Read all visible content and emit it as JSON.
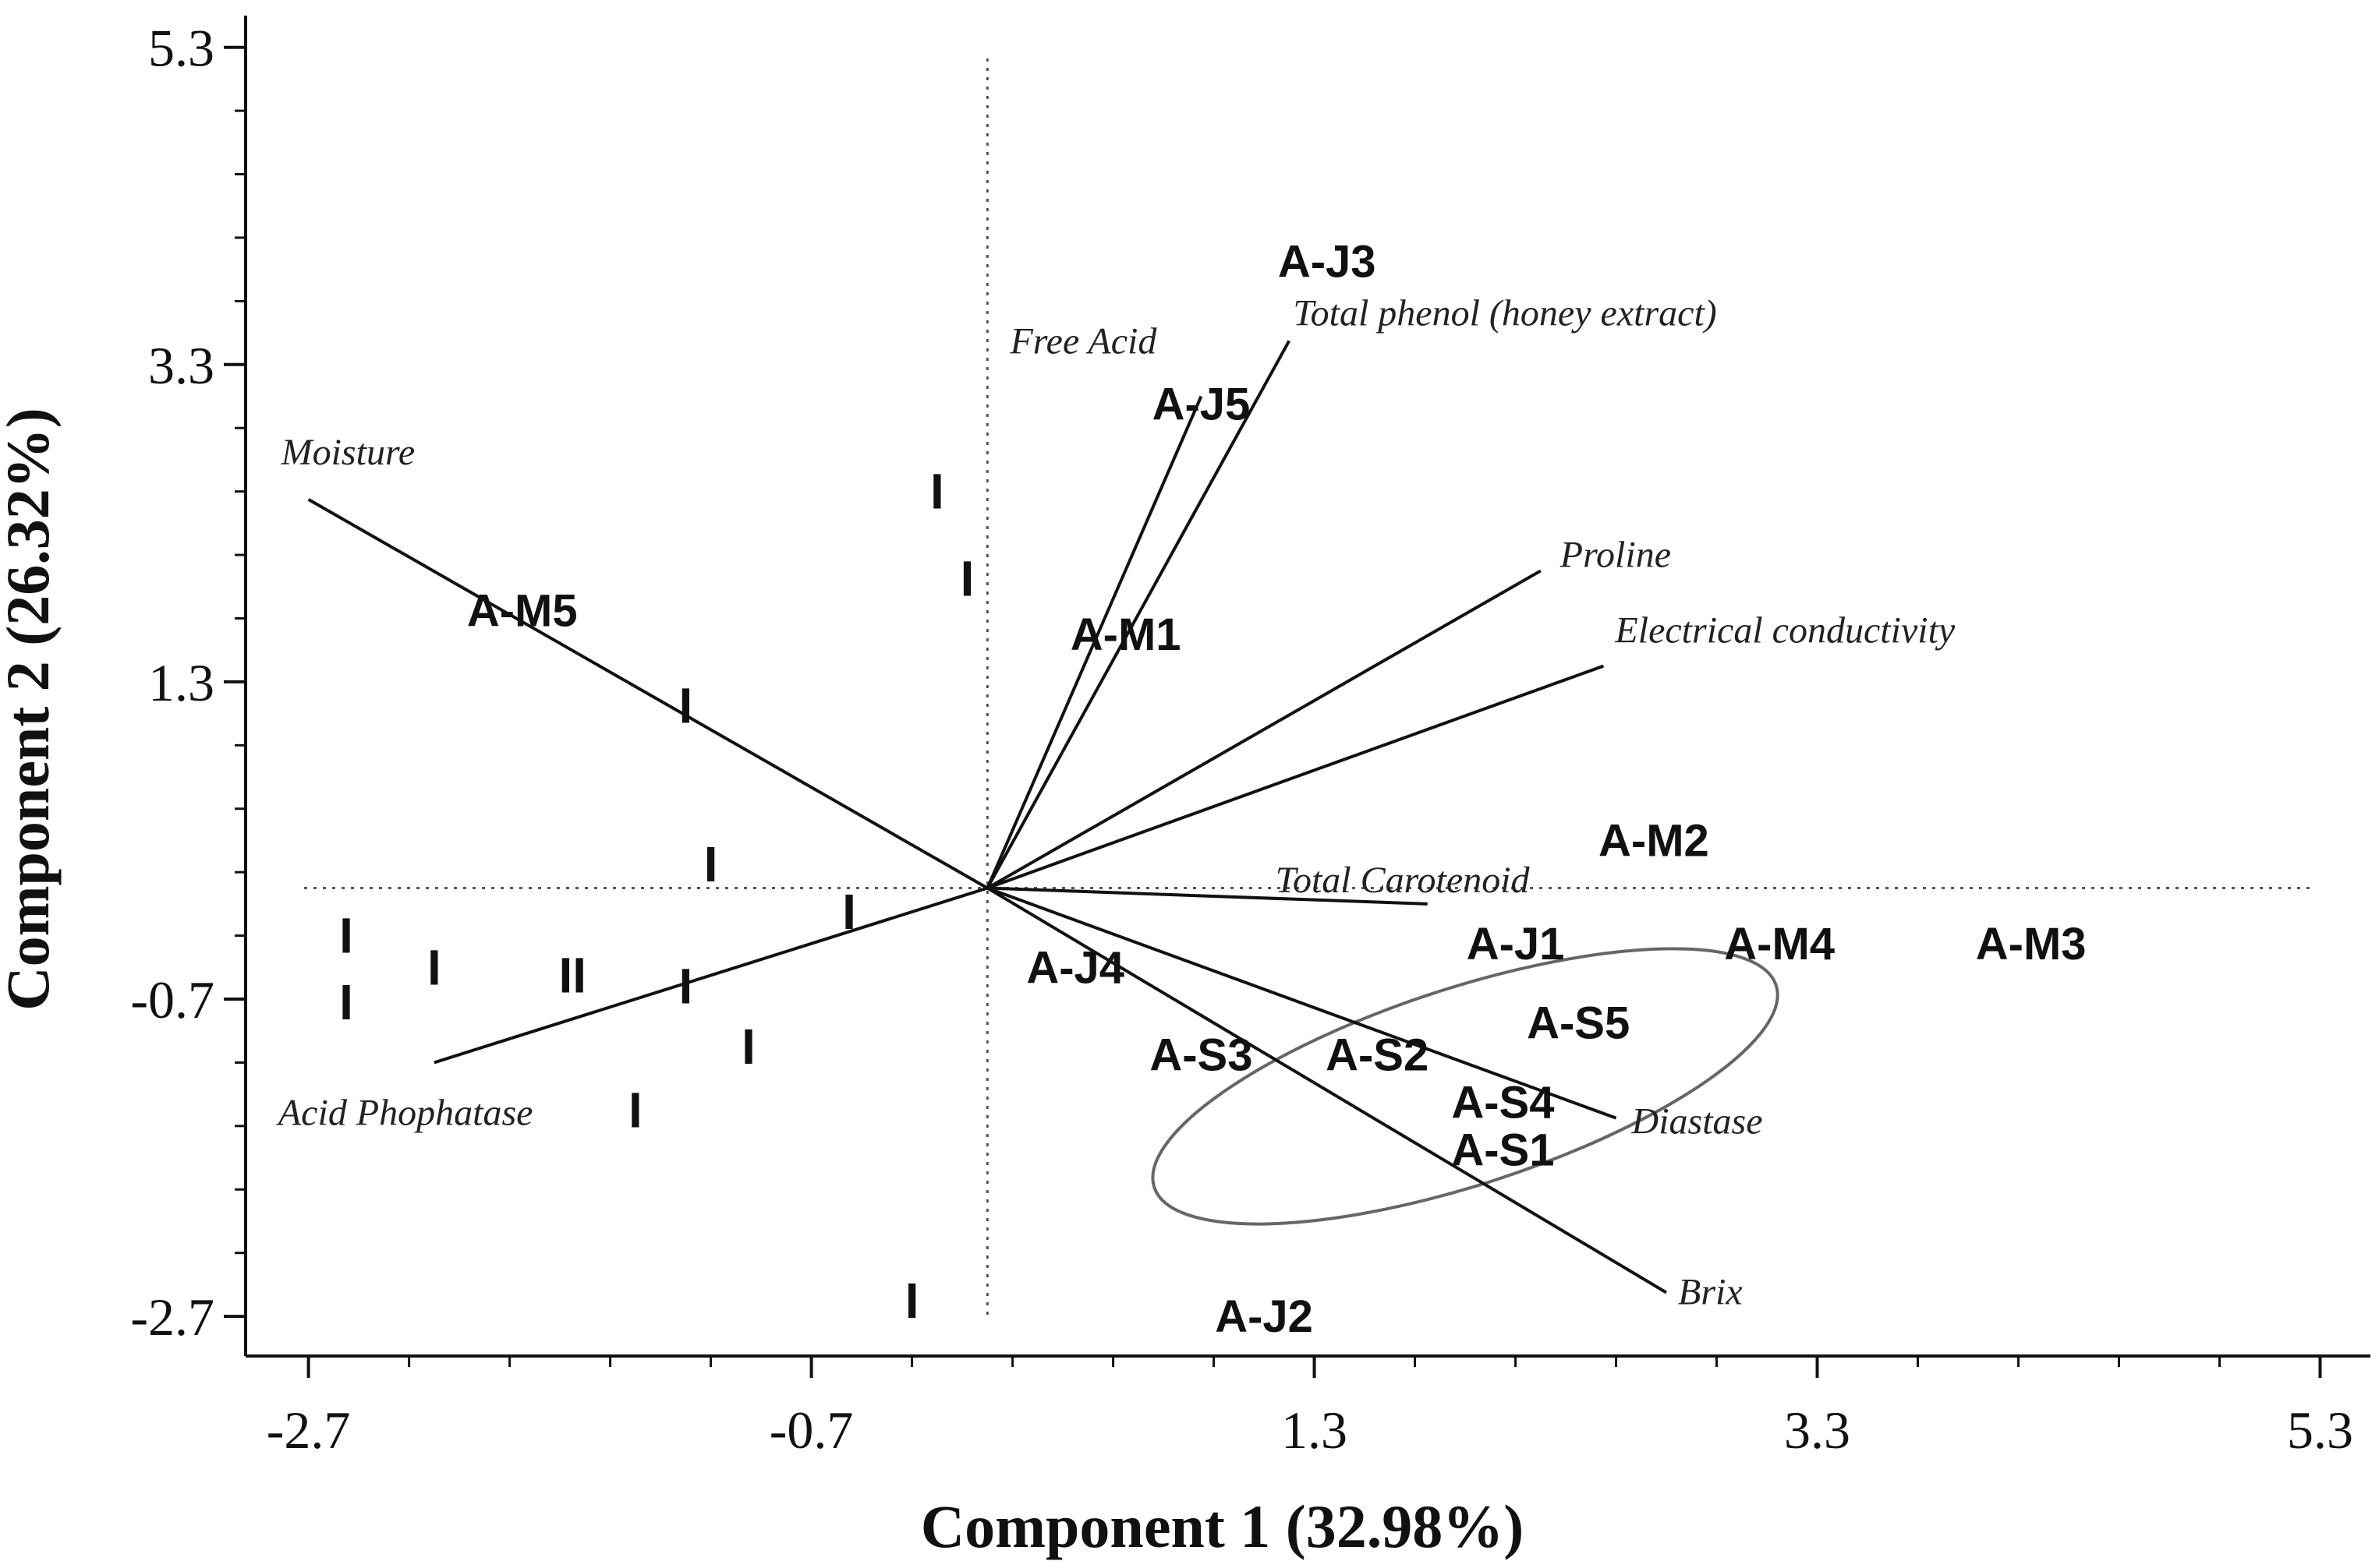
{
  "chart_data": {
    "type": "scatter",
    "subtype": "biplot",
    "xlabel": "Component 1 (32.98%)",
    "ylabel": "Component 2 (26.32%)",
    "xlim": [
      -2.95,
      5.5
    ],
    "ylim": [
      -2.95,
      5.5
    ],
    "x_ticks": [
      -2.7,
      -0.7,
      1.3,
      3.3,
      5.3
    ],
    "y_ticks": [
      -2.7,
      -0.7,
      1.3,
      3.3,
      5.3
    ],
    "x_tick_labels": [
      "-2.7",
      "-0.7",
      "1.3",
      "3.3",
      "5.3"
    ],
    "y_tick_labels": [
      "-2.7",
      "-0.7",
      "1.3",
      "3.3",
      "5.3"
    ],
    "reference_lines": {
      "x": 0,
      "y": 0,
      "style": "dotted"
    },
    "samples": [
      {
        "label": "A-J3",
        "x": 1.35,
        "y": 3.95
      },
      {
        "label": "A-J5",
        "x": 0.85,
        "y": 3.05
      },
      {
        "label": "A-M5",
        "x": -1.85,
        "y": 1.75
      },
      {
        "label": "A-M1",
        "x": 0.55,
        "y": 1.6
      },
      {
        "label": "A-M2",
        "x": 2.65,
        "y": 0.3
      },
      {
        "label": "A-J1",
        "x": 2.1,
        "y": -0.35
      },
      {
        "label": "A-M4",
        "x": 3.15,
        "y": -0.35
      },
      {
        "label": "A-M3",
        "x": 4.15,
        "y": -0.35
      },
      {
        "label": "A-J4",
        "x": 0.35,
        "y": -0.5
      },
      {
        "label": "A-S5",
        "x": 2.35,
        "y": -0.85
      },
      {
        "label": "A-S3",
        "x": 0.85,
        "y": -1.05
      },
      {
        "label": "A-S2",
        "x": 1.55,
        "y": -1.05
      },
      {
        "label": "A-S4",
        "x": 2.05,
        "y": -1.35
      },
      {
        "label": "A-S1",
        "x": 2.05,
        "y": -1.65
      },
      {
        "label": "A-J2",
        "x": 1.1,
        "y": -2.7
      }
    ],
    "markers": [
      {
        "label": "I",
        "x": -0.2,
        "y": 2.5
      },
      {
        "label": "I",
        "x": -0.08,
        "y": 1.95
      },
      {
        "label": "I",
        "x": -1.2,
        "y": 1.15
      },
      {
        "label": "I",
        "x": -1.1,
        "y": 0.15
      },
      {
        "label": "I",
        "x": -0.55,
        "y": -0.15
      },
      {
        "label": "I",
        "x": -2.55,
        "y": -0.3
      },
      {
        "label": "I",
        "x": -2.2,
        "y": -0.5
      },
      {
        "label": "II",
        "x": -1.65,
        "y": -0.55
      },
      {
        "label": "I",
        "x": -1.2,
        "y": -0.62
      },
      {
        "label": "I",
        "x": -2.55,
        "y": -0.72
      },
      {
        "label": "I",
        "x": -0.95,
        "y": -1.0
      },
      {
        "label": "I",
        "x": -1.4,
        "y": -1.4
      },
      {
        "label": "I",
        "x": -0.3,
        "y": -2.6
      }
    ],
    "loadings": [
      {
        "name": "Free Acid",
        "x": 0.85,
        "y": 3.1
      },
      {
        "name": "Total phenol (honey extract)",
        "x": 1.2,
        "y": 3.45
      },
      {
        "name": "Moisture",
        "x": -2.7,
        "y": 2.45
      },
      {
        "name": "Proline",
        "x": 2.2,
        "y": 2.0
      },
      {
        "name": "Electrical conductivity",
        "x": 2.45,
        "y": 1.4
      },
      {
        "name": "Total Carotenoid",
        "x": 1.75,
        "y": -0.1
      },
      {
        "name": "Diastase",
        "x": 2.5,
        "y": -1.45
      },
      {
        "name": "Brix",
        "x": 2.7,
        "y": -2.55
      },
      {
        "name": "Acid Phophatase",
        "x": -2.2,
        "y": -1.1
      }
    ],
    "ellipse": {
      "cx": 1.9,
      "cy": -1.25,
      "rx": 1.3,
      "ry": 0.62,
      "angle_deg": -18
    }
  }
}
